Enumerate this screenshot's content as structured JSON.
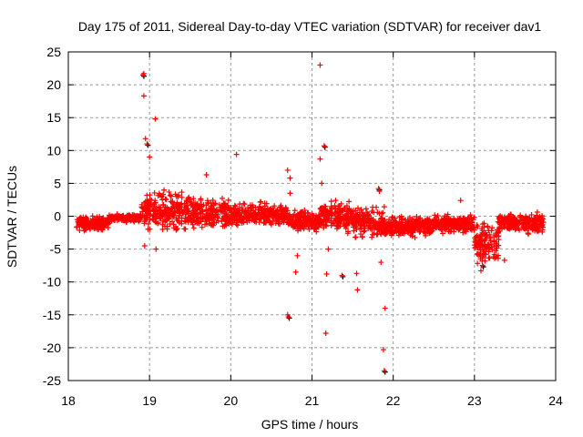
{
  "chart_data": {
    "type": "scatter",
    "title": "Day 175 of 2011, Sidereal Day-to-day VTEC variation (SDTVAR) for receiver dav1",
    "xlabel": "GPS time / hours",
    "ylabel": "SDTVAR / TECUs",
    "xlim": [
      18,
      24
    ],
    "ylim": [
      -25,
      25
    ],
    "xticks": [
      "18",
      "19",
      "20",
      "21",
      "22",
      "23",
      "24"
    ],
    "yticks": [
      "25",
      "20",
      "15",
      "10",
      "5",
      "0",
      "-5",
      "-10",
      "-15",
      "-20",
      "-25"
    ],
    "grid": true,
    "marker": "+",
    "colors": {
      "primary": "#ff0000",
      "secondary": "#000000"
    },
    "band_envelope": [
      {
        "x0": 18.1,
        "x1": 18.5,
        "low": -2.5,
        "high": 0.3
      },
      {
        "x0": 18.5,
        "x1": 18.9,
        "low": -1.0,
        "high": 0.5
      },
      {
        "x0": 18.9,
        "x1": 19.5,
        "low": -3.0,
        "high": 4.5
      },
      {
        "x0": 19.5,
        "x1": 20.0,
        "low": -3.0,
        "high": 3.5
      },
      {
        "x0": 20.0,
        "x1": 20.7,
        "low": -2.0,
        "high": 2.5
      },
      {
        "x0": 20.7,
        "x1": 21.1,
        "low": -3.0,
        "high": 1.5
      },
      {
        "x0": 21.1,
        "x1": 21.5,
        "low": -3.0,
        "high": 3.0
      },
      {
        "x0": 21.5,
        "x1": 21.9,
        "low": -4.0,
        "high": 2.0
      },
      {
        "x0": 21.9,
        "x1": 22.5,
        "low": -3.5,
        "high": 0.5
      },
      {
        "x0": 22.5,
        "x1": 23.0,
        "low": -3.0,
        "high": 0.5
      },
      {
        "x0": 23.0,
        "x1": 23.3,
        "low": -8.0,
        "high": 0.0
      },
      {
        "x0": 23.3,
        "x1": 23.85,
        "low": -3.0,
        "high": 1.0
      }
    ],
    "outliers": [
      [
        18.92,
        21.5
      ],
      [
        18.93,
        21.7
      ],
      [
        18.93,
        18.3
      ],
      [
        19.07,
        14.8
      ],
      [
        18.95,
        11.8
      ],
      [
        18.97,
        11.0
      ],
      [
        19.0,
        9.0
      ],
      [
        19.7,
        6.3
      ],
      [
        20.07,
        9.4
      ],
      [
        21.1,
        23.0
      ],
      [
        21.15,
        10.7
      ],
      [
        21.1,
        8.7
      ],
      [
        20.7,
        7.0
      ],
      [
        20.73,
        5.8
      ],
      [
        20.7,
        -15.0
      ],
      [
        20.71,
        -15.3
      ],
      [
        20.8,
        -8.5
      ],
      [
        20.82,
        -6.0
      ],
      [
        21.17,
        -17.8
      ],
      [
        21.18,
        -8.8
      ],
      [
        21.37,
        -9.0
      ],
      [
        21.55,
        -8.7
      ],
      [
        21.56,
        -11.2
      ],
      [
        21.9,
        -14.0
      ],
      [
        21.88,
        -20.3
      ],
      [
        21.89,
        -23.5
      ],
      [
        22.83,
        2.4
      ],
      [
        23.37,
        -6.7
      ],
      [
        18.94,
        -4.5
      ],
      [
        19.08,
        -5.0
      ],
      [
        21.82,
        4.2
      ],
      [
        21.85,
        -7.0
      ],
      [
        21.83,
        3.8
      ],
      [
        21.12,
        5.0
      ],
      [
        23.08,
        -8.3
      ],
      [
        23.1,
        -7.5
      ],
      [
        21.2,
        -5.0
      ],
      [
        20.73,
        3.5
      ]
    ]
  }
}
